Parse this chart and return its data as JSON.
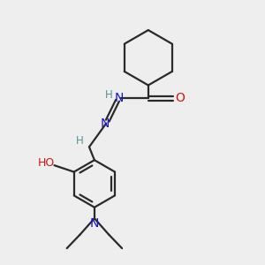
{
  "bg_color": "#eeeeee",
  "bond_color": "#2a2a2a",
  "N_color": "#1515cc",
  "O_color": "#cc1515",
  "H_color": "#5a9090",
  "lw": 1.6,
  "fig_size": [
    3.0,
    3.0
  ],
  "dpi": 100,
  "xlim": [
    0,
    10
  ],
  "ylim": [
    0,
    10
  ]
}
